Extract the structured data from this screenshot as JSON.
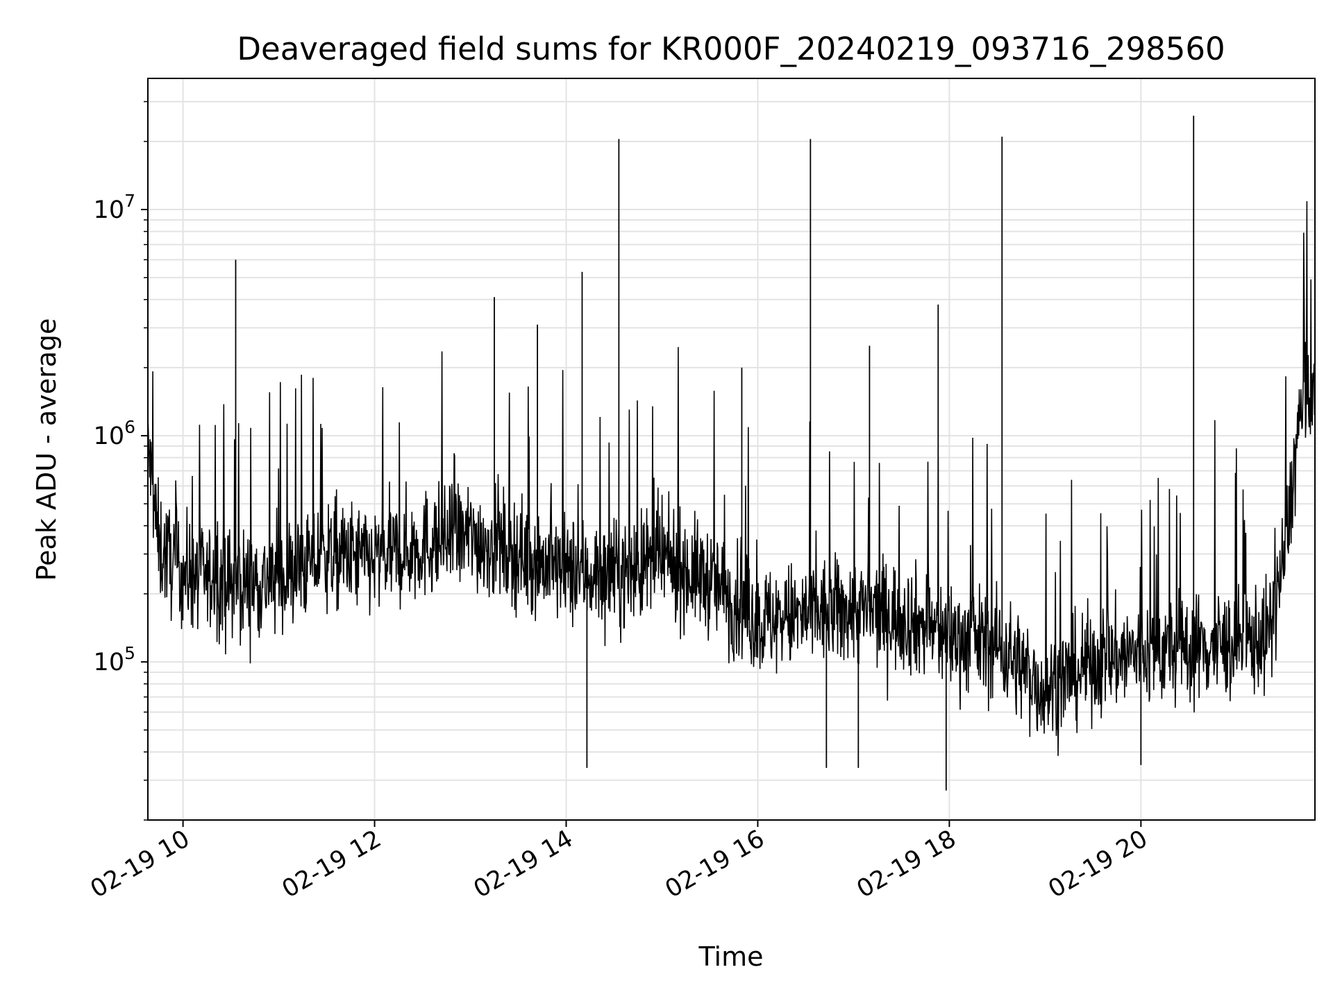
{
  "chart_data": {
    "type": "line",
    "title": "Deaveraged field sums for KR000F_20240219_093716_298560",
    "xlabel": "Time",
    "ylabel": "Peak ADU - average",
    "x_range": [
      "2024-02-19T09:38:00",
      "2024-02-19T21:49:00"
    ],
    "y_range": [
      20000,
      38000000
    ],
    "y_scale": "log",
    "grid": true,
    "legend": "none",
    "x_ticks": [
      {
        "value": "2024-02-19T10:00:00",
        "label": "02-19 10"
      },
      {
        "value": "2024-02-19T12:00:00",
        "label": "02-19 12"
      },
      {
        "value": "2024-02-19T14:00:00",
        "label": "02-19 14"
      },
      {
        "value": "2024-02-19T16:00:00",
        "label": "02-19 16"
      },
      {
        "value": "2024-02-19T18:00:00",
        "label": "02-19 18"
      },
      {
        "value": "2024-02-19T20:00:00",
        "label": "02-19 20"
      }
    ],
    "y_ticks": [
      {
        "value": 100000,
        "base": "10",
        "exp": "5"
      },
      {
        "value": 1000000,
        "base": "10",
        "exp": "6"
      },
      {
        "value": 10000000,
        "base": "10",
        "exp": "7"
      }
    ],
    "series": [
      {
        "color": "#000000",
        "x": [
          "2024-02-19T09:38:00",
          "2024-02-19T09:45:00",
          "2024-02-19T10:00:00",
          "2024-02-19T10:30:00",
          "2024-02-19T11:00:00",
          "2024-02-19T11:30:00",
          "2024-02-19T12:00:00",
          "2024-02-19T12:30:00",
          "2024-02-19T13:00:00",
          "2024-02-19T13:30:00",
          "2024-02-19T14:00:00",
          "2024-02-19T14:30:00",
          "2024-02-19T15:00:00",
          "2024-02-19T15:30:00",
          "2024-02-19T16:00:00",
          "2024-02-19T16:30:00",
          "2024-02-19T17:00:00",
          "2024-02-19T17:30:00",
          "2024-02-19T18:00:00",
          "2024-02-19T18:30:00",
          "2024-02-19T19:00:00",
          "2024-02-19T19:30:00",
          "2024-02-19T20:00:00",
          "2024-02-19T20:30:00",
          "2024-02-19T21:00:00",
          "2024-02-19T21:20:00",
          "2024-02-19T21:30:00",
          "2024-02-19T21:40:00",
          "2024-02-19T21:49:00"
        ],
        "y": [
          900000,
          320000,
          250000,
          220000,
          230000,
          300000,
          280000,
          330000,
          360000,
          300000,
          250000,
          240000,
          280000,
          230000,
          150000,
          160000,
          170000,
          160000,
          130000,
          120000,
          75000,
          100000,
          110000,
          115000,
          120000,
          130000,
          300000,
          1300000,
          1350000
        ]
      }
    ],
    "spikes": [
      {
        "x": "2024-02-19T14:33:00",
        "y": 20500000
      },
      {
        "x": "2024-02-19T16:33:00",
        "y": 20500000
      },
      {
        "x": "2024-02-19T18:33:00",
        "y": 21000000
      },
      {
        "x": "2024-02-19T20:33:00",
        "y": 26000000
      },
      {
        "x": "2024-02-19T10:33:00",
        "y": 6000000
      },
      {
        "x": "2024-02-19T14:10:00",
        "y": 5300000
      },
      {
        "x": "2024-02-19T13:15:00",
        "y": 4100000
      },
      {
        "x": "2024-02-19T17:53:00",
        "y": 3800000
      },
      {
        "x": "2024-02-19T13:42:00",
        "y": 3100000
      },
      {
        "x": "2024-02-19T17:10:00",
        "y": 2500000
      },
      {
        "x": "2024-02-19T21:43:00",
        "y": 2600000
      },
      {
        "x": "2024-02-19T15:50:00",
        "y": 2000000
      },
      {
        "x": "2024-02-19T21:49:00",
        "y": 2900000
      },
      {
        "x": "2024-02-19T17:58:00",
        "y": 27000
      },
      {
        "x": "2024-02-19T14:13:00",
        "y": 34000
      },
      {
        "x": "2024-02-19T16:43:00",
        "y": 34000
      },
      {
        "x": "2024-02-19T17:03:00",
        "y": 34000
      },
      {
        "x": "2024-02-19T20:00:00",
        "y": 35000
      }
    ]
  }
}
